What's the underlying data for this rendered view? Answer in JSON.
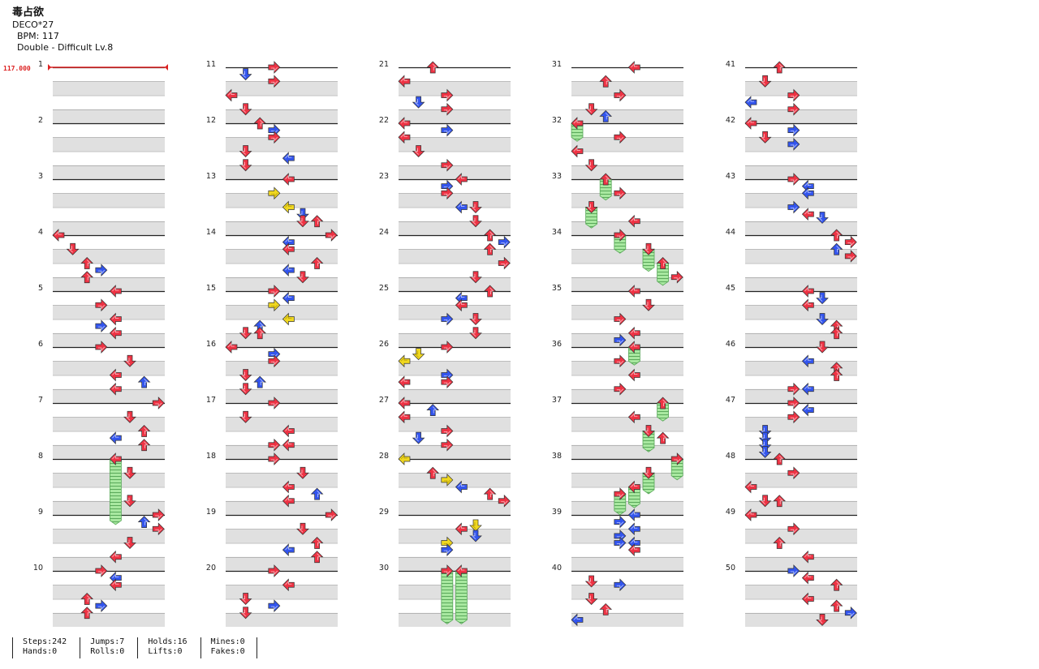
{
  "song": {
    "title": "毒占欲",
    "artist": "DECO*27",
    "bpm_text": "BPM: 117",
    "chart_text": "Double - Difficult Lv.8",
    "bpm_marker": "117.000"
  },
  "measure_labels": [
    "1",
    "2",
    "3",
    "4",
    "5",
    "6",
    "7",
    "8",
    "9",
    "10",
    "11",
    "12",
    "13",
    "14",
    "15",
    "16",
    "17",
    "18",
    "19",
    "20",
    "21",
    "22",
    "23",
    "24",
    "25",
    "26",
    "27",
    "28",
    "29",
    "30",
    "31",
    "32",
    "33",
    "34",
    "35",
    "36",
    "37",
    "38",
    "39",
    "40",
    "41",
    "42",
    "43",
    "44",
    "45",
    "46",
    "47",
    "48",
    "49",
    "50"
  ],
  "stats": {
    "steps": "Steps:242",
    "hands": "Hands:0",
    "jumps": "Jumps:7",
    "rolls": "Rolls:0",
    "holds": "Holds:16",
    "lifts": "Lifts:0",
    "mines": "Mines:0",
    "fakes": "Fakes:0"
  },
  "colors": {
    "quarter_note": "#ee3344",
    "eighth_note": "#3355ee",
    "sixteenth_note": "#f0d820",
    "hold_body": "#a8e8a0",
    "bpm_marker": "#dd2222",
    "row_shade": "#e0e0e0"
  },
  "legend_note": "Each note = [measure 1-50, beat position in measure (0-4), lane 0-7 (L,D,U,R ×2), division q|e|s, hold length in beats]",
  "notes": [
    [
      4,
      0,
      0,
      "q",
      0
    ],
    [
      4,
      1,
      1,
      "q",
      0
    ],
    [
      4,
      2,
      2,
      "q",
      0
    ],
    [
      4,
      2.5,
      3,
      "e",
      0
    ],
    [
      4,
      3,
      2,
      "q",
      0
    ],
    [
      5,
      0,
      4,
      "q",
      0
    ],
    [
      5,
      1,
      3,
      "q",
      0
    ],
    [
      5,
      2,
      4,
      "q",
      0
    ],
    [
      5,
      2.5,
      3,
      "e",
      0
    ],
    [
      5,
      3,
      4,
      "q",
      0
    ],
    [
      6,
      0,
      3,
      "q",
      0
    ],
    [
      6,
      1,
      5,
      "q",
      0
    ],
    [
      6,
      2,
      4,
      "q",
      0
    ],
    [
      6,
      2.5,
      6,
      "e",
      0
    ],
    [
      6,
      3,
      4,
      "q",
      0
    ],
    [
      7,
      0,
      7,
      "q",
      0
    ],
    [
      7,
      1,
      5,
      "q",
      0
    ],
    [
      7,
      2,
      6,
      "q",
      0
    ],
    [
      7,
      2.5,
      4,
      "e",
      0
    ],
    [
      7,
      3,
      6,
      "q",
      0
    ],
    [
      8,
      0,
      4,
      "q",
      4.4
    ],
    [
      8,
      1,
      5,
      "q",
      0
    ],
    [
      8,
      3,
      5,
      "q",
      0
    ],
    [
      9,
      0,
      7,
      "q",
      0
    ],
    [
      9,
      0.5,
      6,
      "e",
      0
    ],
    [
      9,
      1,
      7,
      "q",
      0
    ],
    [
      9,
      2,
      5,
      "q",
      0
    ],
    [
      9,
      3,
      4,
      "q",
      0
    ],
    [
      10,
      0,
      3,
      "q",
      0
    ],
    [
      10,
      0.5,
      4,
      "e",
      0
    ],
    [
      10,
      1,
      4,
      "q",
      0
    ],
    [
      10,
      2,
      2,
      "q",
      0
    ],
    [
      10,
      2.5,
      3,
      "e",
      0
    ],
    [
      10,
      3,
      2,
      "q",
      0
    ],
    [
      11,
      0,
      3,
      "q",
      0
    ],
    [
      11,
      0.5,
      1,
      "e",
      0
    ],
    [
      11,
      1,
      3,
      "q",
      0
    ],
    [
      11,
      2,
      0,
      "q",
      0
    ],
    [
      11,
      3,
      1,
      "q",
      0
    ],
    [
      12,
      0,
      2,
      "q",
      0
    ],
    [
      12,
      0.5,
      3,
      "e",
      0
    ],
    [
      12,
      1,
      3,
      "q",
      0
    ],
    [
      12,
      2,
      1,
      "q",
      0
    ],
    [
      12,
      2.5,
      4,
      "e",
      0
    ],
    [
      12,
      3,
      1,
      "q",
      0
    ],
    [
      13,
      0,
      4,
      "q",
      0
    ],
    [
      13,
      1,
      3,
      "s",
      0
    ],
    [
      13,
      2,
      4,
      "s",
      0
    ],
    [
      13,
      2.5,
      5,
      "e",
      0
    ],
    [
      13,
      3,
      5,
      "q",
      0
    ],
    [
      13,
      3,
      6,
      "q",
      0
    ],
    [
      14,
      0,
      7,
      "q",
      0
    ],
    [
      14,
      0.5,
      4,
      "e",
      0
    ],
    [
      14,
      1,
      4,
      "q",
      0
    ],
    [
      14,
      2,
      6,
      "q",
      0
    ],
    [
      14,
      2.5,
      4,
      "e",
      0
    ],
    [
      14,
      3,
      5,
      "q",
      0
    ],
    [
      15,
      0,
      3,
      "q",
      0
    ],
    [
      15,
      0.5,
      4,
      "e",
      0
    ],
    [
      15,
      1,
      3,
      "s",
      0
    ],
    [
      15,
      2,
      4,
      "s",
      0
    ],
    [
      15,
      2.5,
      2,
      "e",
      0
    ],
    [
      15,
      3,
      1,
      "q",
      0
    ],
    [
      15,
      3,
      2,
      "q",
      0
    ],
    [
      16,
      0,
      0,
      "q",
      0
    ],
    [
      16,
      0.5,
      3,
      "e",
      0
    ],
    [
      16,
      1,
      3,
      "q",
      0
    ],
    [
      16,
      2,
      1,
      "q",
      0
    ],
    [
      16,
      2.5,
      2,
      "e",
      0
    ],
    [
      16,
      3,
      1,
      "q",
      0
    ],
    [
      17,
      0,
      3,
      "q",
      0
    ],
    [
      17,
      1,
      1,
      "q",
      0
    ],
    [
      17,
      2,
      4,
      "q",
      0
    ],
    [
      17,
      3,
      3,
      "q",
      0
    ],
    [
      17,
      3,
      4,
      "q",
      0
    ],
    [
      18,
      0,
      3,
      "q",
      0
    ],
    [
      18,
      1,
      5,
      "q",
      0
    ],
    [
      18,
      2,
      4,
      "q",
      0
    ],
    [
      18,
      2.5,
      6,
      "e",
      0
    ],
    [
      18,
      3,
      4,
      "q",
      0
    ],
    [
      19,
      0,
      7,
      "q",
      0
    ],
    [
      19,
      1,
      5,
      "q",
      0
    ],
    [
      19,
      2,
      6,
      "q",
      0
    ],
    [
      19,
      2.5,
      4,
      "e",
      0
    ],
    [
      19,
      3,
      6,
      "q",
      0
    ],
    [
      20,
      0,
      3,
      "q",
      0
    ],
    [
      20,
      1,
      4,
      "q",
      0
    ],
    [
      20,
      2,
      1,
      "q",
      0
    ],
    [
      20,
      2.5,
      3,
      "e",
      0
    ],
    [
      20,
      3,
      1,
      "q",
      0
    ],
    [
      21,
      0,
      2,
      "q",
      0
    ],
    [
      21,
      1,
      0,
      "q",
      0
    ],
    [
      21,
      2,
      3,
      "q",
      0
    ],
    [
      21,
      2.5,
      1,
      "e",
      0
    ],
    [
      21,
      3,
      3,
      "q",
      0
    ],
    [
      22,
      0,
      0,
      "q",
      0
    ],
    [
      22,
      0.5,
      3,
      "e",
      0
    ],
    [
      22,
      1,
      0,
      "q",
      0
    ],
    [
      22,
      2,
      1,
      "q",
      0
    ],
    [
      22,
      3,
      3,
      "q",
      0
    ],
    [
      23,
      0,
      4,
      "q",
      0
    ],
    [
      23,
      0.5,
      3,
      "e",
      0
    ],
    [
      23,
      1,
      3,
      "q",
      0
    ],
    [
      23,
      2,
      4,
      "e",
      0
    ],
    [
      23,
      2,
      5,
      "q",
      0
    ],
    [
      23,
      3,
      5,
      "q",
      0
    ],
    [
      24,
      0,
      6,
      "q",
      0
    ],
    [
      24,
      0.5,
      7,
      "e",
      0
    ],
    [
      24,
      1,
      6,
      "q",
      0
    ],
    [
      24,
      2,
      7,
      "q",
      0
    ],
    [
      24,
      3,
      5,
      "q",
      0
    ],
    [
      25,
      0,
      6,
      "q",
      0
    ],
    [
      25,
      0.5,
      4,
      "e",
      0
    ],
    [
      25,
      1,
      4,
      "q",
      0
    ],
    [
      25,
      2,
      3,
      "e",
      0
    ],
    [
      25,
      2,
      5,
      "q",
      0
    ],
    [
      25,
      3,
      5,
      "q",
      0
    ],
    [
      26,
      0,
      3,
      "q",
      0
    ],
    [
      26,
      0.5,
      1,
      "s",
      0
    ],
    [
      26,
      1,
      0,
      "s",
      0
    ],
    [
      26,
      2,
      3,
      "e",
      0
    ],
    [
      26,
      2.5,
      0,
      "q",
      0
    ],
    [
      26,
      2.5,
      3,
      "q",
      0
    ],
    [
      27,
      0,
      0,
      "q",
      0
    ],
    [
      27,
      0.5,
      2,
      "e",
      0
    ],
    [
      27,
      1,
      0,
      "q",
      0
    ],
    [
      27,
      2,
      3,
      "q",
      0
    ],
    [
      27,
      2.5,
      1,
      "e",
      0
    ],
    [
      27,
      3,
      3,
      "q",
      0
    ],
    [
      28,
      0,
      0,
      "s",
      0
    ],
    [
      28,
      1,
      2,
      "q",
      0
    ],
    [
      28,
      1.5,
      3,
      "s",
      0
    ],
    [
      28,
      2,
      4,
      "e",
      0
    ],
    [
      28,
      2.5,
      6,
      "q",
      0
    ],
    [
      28,
      3,
      7,
      "q",
      0
    ],
    [
      29,
      0.75,
      5,
      "s",
      0
    ],
    [
      29,
      1.5,
      5,
      "e",
      0
    ],
    [
      29,
      1,
      4,
      "q",
      0
    ],
    [
      29,
      2,
      3,
      "s",
      0
    ],
    [
      29,
      2.5,
      3,
      "e",
      0
    ],
    [
      30,
      0,
      3,
      "q",
      3.5
    ],
    [
      30,
      0,
      4,
      "q",
      3.5
    ],
    [
      31,
      0,
      4,
      "q",
      0
    ],
    [
      31,
      1,
      2,
      "q",
      0
    ],
    [
      31,
      2,
      3,
      "q",
      0
    ],
    [
      31,
      3,
      1,
      "q",
      0
    ],
    [
      31,
      3.5,
      2,
      "e",
      0
    ],
    [
      32,
      0,
      0,
      "q",
      1
    ],
    [
      32,
      1,
      3,
      "q",
      0
    ],
    [
      32,
      2,
      0,
      "q",
      0
    ],
    [
      32,
      3,
      1,
      "q",
      0
    ],
    [
      33,
      0,
      2,
      "q",
      1.2
    ],
    [
      33,
      1,
      3,
      "q",
      0
    ],
    [
      33,
      2,
      1,
      "q",
      1.2
    ],
    [
      33,
      3,
      4,
      "q",
      0
    ],
    [
      34,
      0,
      3,
      "q",
      1
    ],
    [
      34,
      1,
      5,
      "q",
      1.3
    ],
    [
      34,
      2,
      6,
      "q",
      1.3
    ],
    [
      34,
      3,
      7,
      "q",
      0
    ],
    [
      35,
      0,
      4,
      "q",
      0
    ],
    [
      35,
      1,
      5,
      "q",
      0
    ],
    [
      35,
      2,
      3,
      "q",
      0
    ],
    [
      35,
      3,
      4,
      "q",
      0
    ],
    [
      35,
      3.5,
      3,
      "e",
      0
    ],
    [
      36,
      0,
      4,
      "q",
      1
    ],
    [
      36,
      1,
      3,
      "q",
      0
    ],
    [
      36,
      2,
      4,
      "q",
      0
    ],
    [
      36,
      3,
      3,
      "q",
      0
    ],
    [
      37,
      0,
      6,
      "q",
      1
    ],
    [
      37,
      1,
      4,
      "q",
      0
    ],
    [
      37,
      2,
      5,
      "q",
      1.2
    ],
    [
      37,
      2.5,
      6,
      "q",
      0
    ],
    [
      38,
      0,
      7,
      "q",
      1.2
    ],
    [
      38,
      1,
      5,
      "q",
      1.2
    ],
    [
      38,
      2,
      4,
      "q",
      1.2
    ],
    [
      38,
      2.5,
      3,
      "q",
      1.2
    ],
    [
      39,
      0,
      4,
      "e",
      0
    ],
    [
      39,
      0.5,
      3,
      "e",
      0
    ],
    [
      39,
      1,
      4,
      "e",
      0
    ],
    [
      39,
      1.5,
      3,
      "e",
      0
    ],
    [
      39,
      2,
      3,
      "e",
      0
    ],
    [
      39,
      2,
      4,
      "e",
      0
    ],
    [
      39,
      2.5,
      4,
      "q",
      0
    ],
    [
      40,
      0.75,
      1,
      "q",
      0
    ],
    [
      40,
      1,
      3,
      "e",
      0
    ],
    [
      40,
      2,
      1,
      "q",
      0
    ],
    [
      40,
      2.75,
      2,
      "q",
      0
    ],
    [
      40,
      3.5,
      0,
      "e",
      0
    ],
    [
      41,
      0,
      2,
      "q",
      0
    ],
    [
      41,
      1,
      1,
      "q",
      0
    ],
    [
      41,
      2,
      3,
      "q",
      0
    ],
    [
      41,
      2.5,
      0,
      "e",
      0
    ],
    [
      41,
      3,
      3,
      "q",
      0
    ],
    [
      42,
      0,
      0,
      "q",
      0
    ],
    [
      42,
      0.5,
      3,
      "e",
      0
    ],
    [
      42,
      1,
      1,
      "q",
      0
    ],
    [
      42,
      1.5,
      3,
      "e",
      0
    ],
    [
      43,
      0,
      3,
      "q",
      0
    ],
    [
      43,
      0.5,
      4,
      "e",
      0
    ],
    [
      43,
      1,
      4,
      "e",
      0
    ],
    [
      43,
      2,
      3,
      "e",
      0
    ],
    [
      43,
      2.5,
      4,
      "q",
      0
    ],
    [
      43,
      2.75,
      5,
      "e",
      0
    ],
    [
      44,
      0,
      6,
      "q",
      0
    ],
    [
      44,
      0.5,
      7,
      "q",
      0
    ],
    [
      44,
      1,
      6,
      "e",
      0
    ],
    [
      44,
      1.5,
      7,
      "q",
      0
    ],
    [
      45,
      0,
      4,
      "q",
      0
    ],
    [
      45,
      0.5,
      5,
      "e",
      0
    ],
    [
      45,
      1,
      4,
      "q",
      0
    ],
    [
      45,
      2,
      5,
      "e",
      0
    ],
    [
      45,
      2.5,
      6,
      "q",
      0
    ],
    [
      45,
      3,
      6,
      "q",
      0
    ],
    [
      46,
      0,
      5,
      "q",
      0
    ],
    [
      46,
      1,
      4,
      "e",
      0
    ],
    [
      46,
      1.5,
      6,
      "q",
      0
    ],
    [
      46,
      2,
      6,
      "q",
      0
    ],
    [
      46,
      3,
      4,
      "e",
      0
    ],
    [
      46,
      3,
      3,
      "q",
      0
    ],
    [
      47,
      0,
      3,
      "q",
      0
    ],
    [
      47,
      0.5,
      4,
      "e",
      0
    ],
    [
      47,
      1,
      3,
      "q",
      0
    ],
    [
      47,
      2,
      1,
      "e",
      0
    ],
    [
      47,
      2.5,
      1,
      "e",
      0
    ],
    [
      47,
      3,
      1,
      "e",
      0
    ],
    [
      47,
      3.5,
      1,
      "e",
      0
    ],
    [
      48,
      0,
      2,
      "q",
      0
    ],
    [
      48,
      1,
      3,
      "q",
      0
    ],
    [
      48,
      2,
      0,
      "q",
      0
    ],
    [
      48,
      3,
      1,
      "q",
      0
    ],
    [
      48,
      3,
      2,
      "q",
      0
    ],
    [
      49,
      0,
      0,
      "q",
      0
    ],
    [
      49,
      1,
      3,
      "q",
      0
    ],
    [
      49,
      2,
      2,
      "q",
      0
    ],
    [
      49,
      3,
      4,
      "q",
      0
    ],
    [
      50,
      0,
      3,
      "e",
      0
    ],
    [
      50,
      0.5,
      4,
      "q",
      0
    ],
    [
      50,
      1,
      6,
      "q",
      0
    ],
    [
      50,
      2,
      4,
      "q",
      0
    ],
    [
      50,
      2.5,
      6,
      "q",
      0
    ],
    [
      50,
      3,
      7,
      "e",
      0
    ],
    [
      50,
      3.5,
      5,
      "q",
      0
    ]
  ]
}
